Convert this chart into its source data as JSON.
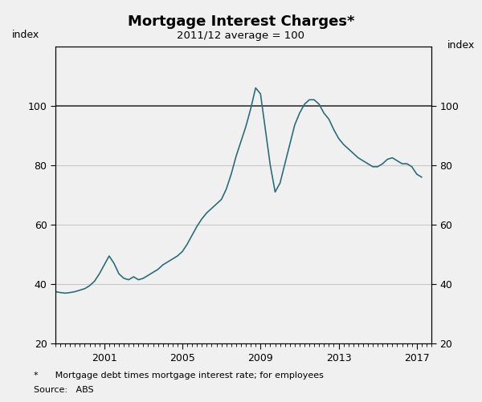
{
  "title": "Mortgage Interest Charges*",
  "subtitle": "2011/12 average = 100",
  "ylabel_left": "index",
  "ylabel_right": "index",
  "ylim": [
    20,
    120
  ],
  "yticks": [
    20,
    40,
    60,
    80,
    100
  ],
  "xlim_start": 1998.5,
  "xlim_end": 2017.75,
  "xtick_major": [
    2001,
    2005,
    2009,
    2013,
    2017
  ],
  "xticklabels": [
    "2001",
    "2005",
    "2009",
    "2013",
    "2017"
  ],
  "line_color": "#2b6e7a",
  "fig_bg_color": "#f0f0f0",
  "plot_bg_color": "#f0f0f0",
  "grid_color_normal": "#c8c8c8",
  "grid_color_100": "#333333",
  "footnote": "*      Mortgage debt times mortgage interest rate; for employees",
  "source": "Source:   ABS",
  "series": [
    [
      1998.5,
      37.5
    ],
    [
      1998.75,
      37.2
    ],
    [
      1999.0,
      37.0
    ],
    [
      1999.25,
      37.2
    ],
    [
      1999.5,
      37.5
    ],
    [
      1999.75,
      38.0
    ],
    [
      2000.0,
      38.5
    ],
    [
      2000.25,
      39.5
    ],
    [
      2000.5,
      41.0
    ],
    [
      2000.75,
      43.5
    ],
    [
      2001.0,
      46.5
    ],
    [
      2001.25,
      49.5
    ],
    [
      2001.5,
      47.0
    ],
    [
      2001.75,
      43.5
    ],
    [
      2002.0,
      42.0
    ],
    [
      2002.25,
      41.5
    ],
    [
      2002.5,
      42.5
    ],
    [
      2002.75,
      41.5
    ],
    [
      2003.0,
      42.0
    ],
    [
      2003.25,
      43.0
    ],
    [
      2003.5,
      44.0
    ],
    [
      2003.75,
      45.0
    ],
    [
      2004.0,
      46.5
    ],
    [
      2004.25,
      47.5
    ],
    [
      2004.5,
      48.5
    ],
    [
      2004.75,
      49.5
    ],
    [
      2005.0,
      51.0
    ],
    [
      2005.25,
      53.5
    ],
    [
      2005.5,
      56.5
    ],
    [
      2005.75,
      59.5
    ],
    [
      2006.0,
      62.0
    ],
    [
      2006.25,
      64.0
    ],
    [
      2006.5,
      65.5
    ],
    [
      2006.75,
      67.0
    ],
    [
      2007.0,
      68.5
    ],
    [
      2007.25,
      72.0
    ],
    [
      2007.5,
      77.0
    ],
    [
      2007.75,
      83.0
    ],
    [
      2008.0,
      88.0
    ],
    [
      2008.25,
      93.0
    ],
    [
      2008.5,
      99.0
    ],
    [
      2008.75,
      106.0
    ],
    [
      2009.0,
      104.0
    ],
    [
      2009.25,
      92.0
    ],
    [
      2009.5,
      80.0
    ],
    [
      2009.75,
      71.0
    ],
    [
      2010.0,
      74.0
    ],
    [
      2010.25,
      80.5
    ],
    [
      2010.5,
      87.0
    ],
    [
      2010.75,
      93.5
    ],
    [
      2011.0,
      97.5
    ],
    [
      2011.25,
      100.5
    ],
    [
      2011.5,
      102.0
    ],
    [
      2011.75,
      102.0
    ],
    [
      2012.0,
      100.5
    ],
    [
      2012.25,
      97.5
    ],
    [
      2012.5,
      95.5
    ],
    [
      2012.75,
      92.0
    ],
    [
      2013.0,
      89.0
    ],
    [
      2013.25,
      87.0
    ],
    [
      2013.5,
      85.5
    ],
    [
      2013.75,
      84.0
    ],
    [
      2014.0,
      82.5
    ],
    [
      2014.25,
      81.5
    ],
    [
      2014.5,
      80.5
    ],
    [
      2014.75,
      79.5
    ],
    [
      2015.0,
      79.5
    ],
    [
      2015.25,
      80.5
    ],
    [
      2015.5,
      82.0
    ],
    [
      2015.75,
      82.5
    ],
    [
      2016.0,
      81.5
    ],
    [
      2016.25,
      80.5
    ],
    [
      2016.5,
      80.5
    ],
    [
      2016.75,
      79.5
    ],
    [
      2017.0,
      77.0
    ],
    [
      2017.25,
      76.0
    ]
  ]
}
